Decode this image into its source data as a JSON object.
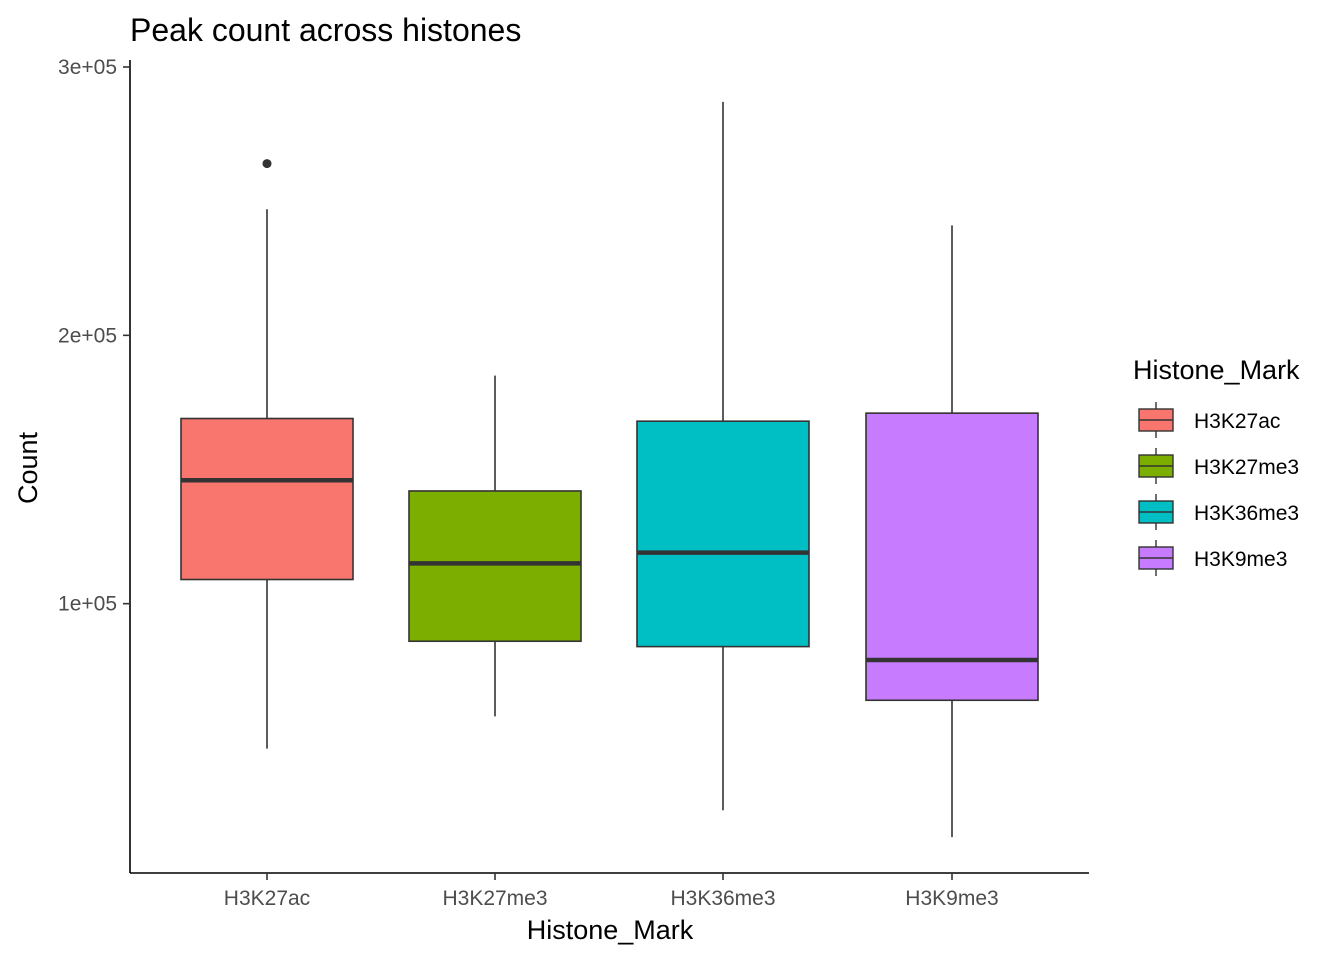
{
  "chart_data": {
    "type": "boxplot",
    "title": "Peak count across histones",
    "xlabel": "Histone_Mark",
    "ylabel": "Count",
    "categories": [
      "H3K27ac",
      "H3K27me3",
      "H3K36me3",
      "H3K9me3"
    ],
    "ylim": [
      0,
      300000
    ],
    "yticks": [
      100000,
      200000,
      300000
    ],
    "ytick_labels": [
      "1e+05",
      "2e+05",
      "3e+05"
    ],
    "grid": false,
    "legend": {
      "title": "Histone_Mark",
      "placement": "right",
      "entries": [
        "H3K27ac",
        "H3K27me3",
        "H3K36me3",
        "H3K9me3"
      ]
    },
    "boxes": [
      {
        "name": "H3K27ac",
        "whisker_low": 46000,
        "q1": 109000,
        "median": 146000,
        "q3": 169000,
        "whisker_high": 247000,
        "outliers": [
          264000
        ],
        "color": "#F8766D"
      },
      {
        "name": "H3K27me3",
        "whisker_low": 58000,
        "q1": 86000,
        "median": 115000,
        "q3": 142000,
        "whisker_high": 185000,
        "outliers": [],
        "color": "#7CAE00"
      },
      {
        "name": "H3K36me3",
        "whisker_low": 23000,
        "q1": 84000,
        "median": 119000,
        "q3": 168000,
        "whisker_high": 287000,
        "outliers": [],
        "color": "#00BFC4"
      },
      {
        "name": "H3K9me3",
        "whisker_low": 13000,
        "q1": 64000,
        "median": 79000,
        "q3": 171000,
        "whisker_high": 241000,
        "outliers": [],
        "color": "#C77CFF"
      }
    ]
  }
}
